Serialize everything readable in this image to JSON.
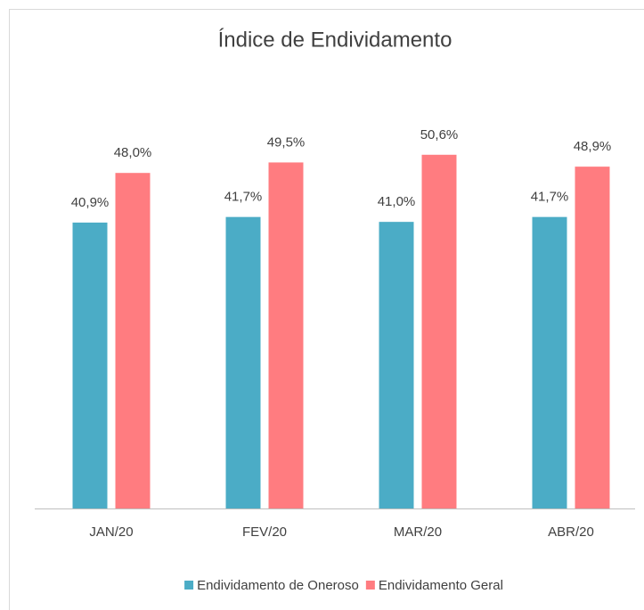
{
  "chart_data": {
    "type": "bar",
    "title": "Índice de Endividamento",
    "categories": [
      "JAN/20",
      "FEV/20",
      "MAR/20",
      "ABR/20"
    ],
    "series": [
      {
        "name": "Endividamento de Oneroso",
        "color": "#4bacc6",
        "values": [
          40.9,
          41.7,
          41.0,
          41.7
        ],
        "value_labels": [
          "40,9%",
          "41,7%",
          "41,0%",
          "41,7%"
        ]
      },
      {
        "name": "Endividamento Geral",
        "color": "#ff7c80",
        "values": [
          48.0,
          49.5,
          50.6,
          48.9
        ],
        "value_labels": [
          "48,0%",
          "49,5%",
          "50,6%",
          "48,9%"
        ]
      }
    ],
    "ylim": [
      0,
      60
    ],
    "legend": "bottom"
  }
}
